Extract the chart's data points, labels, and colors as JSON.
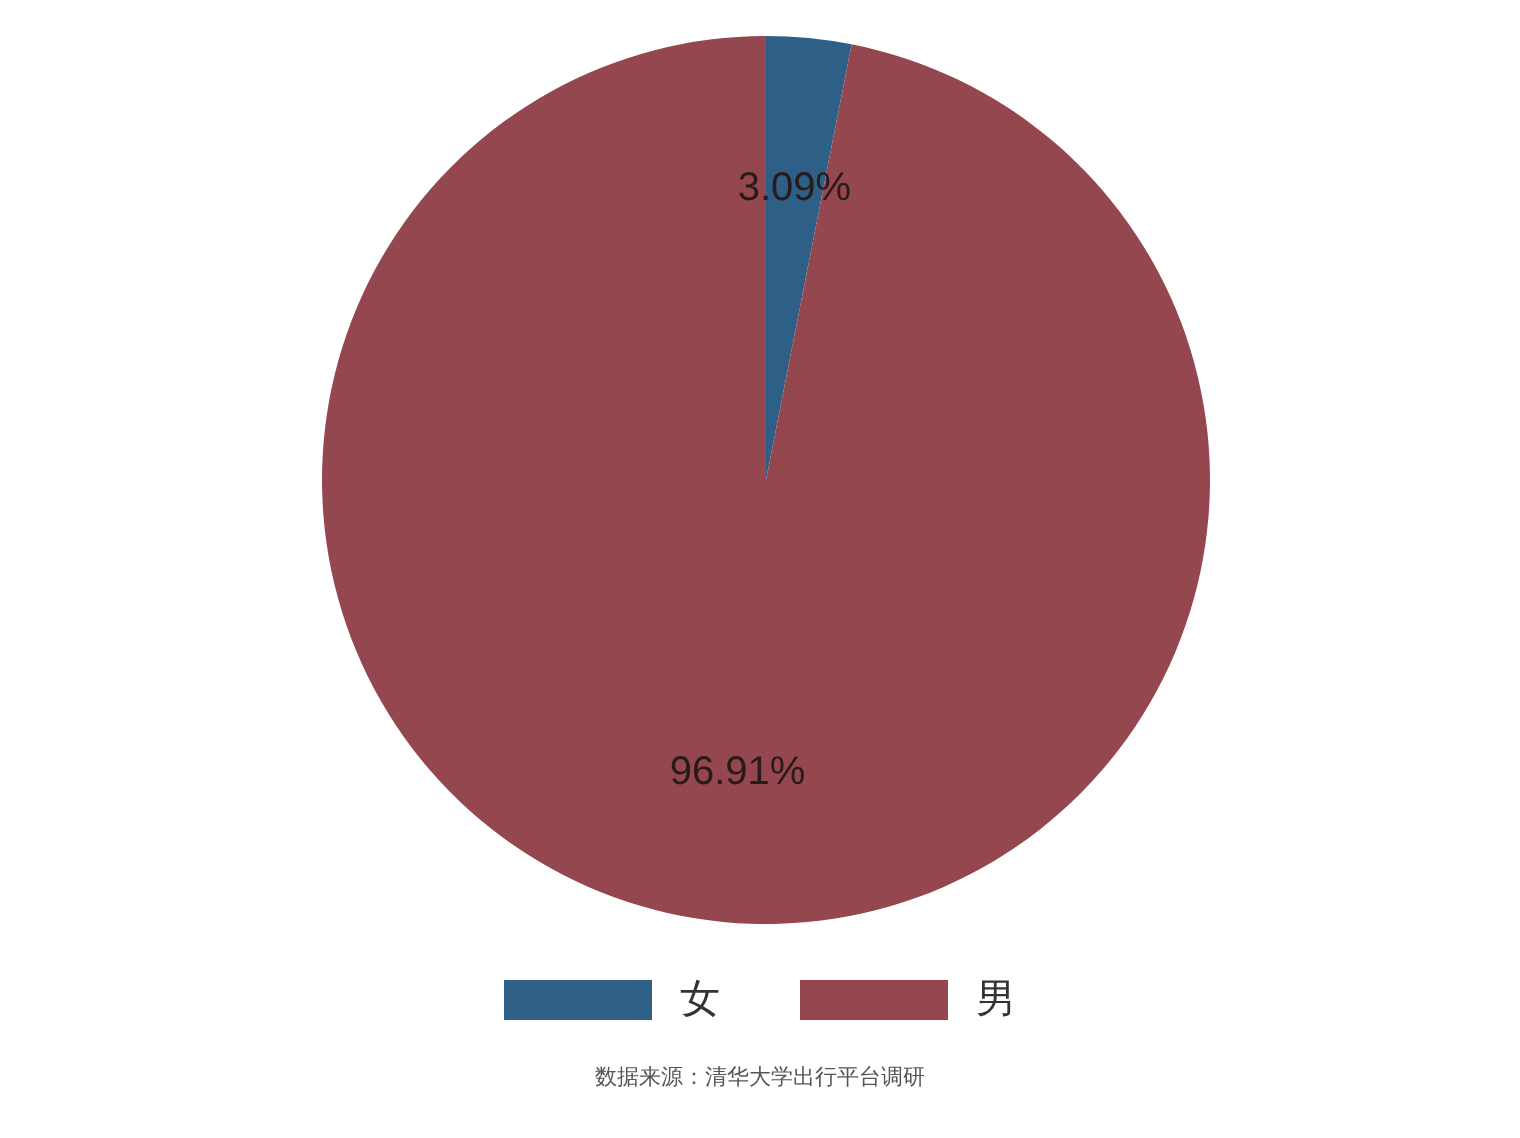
{
  "chart_data": {
    "type": "pie",
    "categories": [
      "女",
      "男"
    ],
    "values": [
      3.09,
      96.91
    ],
    "colors": [
      "#2e5f86",
      "#94474f"
    ],
    "value_labels": [
      "3.09%",
      "96.91%"
    ],
    "legend": "bottom",
    "annotations": [
      "数据来源：清华大学出行平台调研"
    ]
  }
}
